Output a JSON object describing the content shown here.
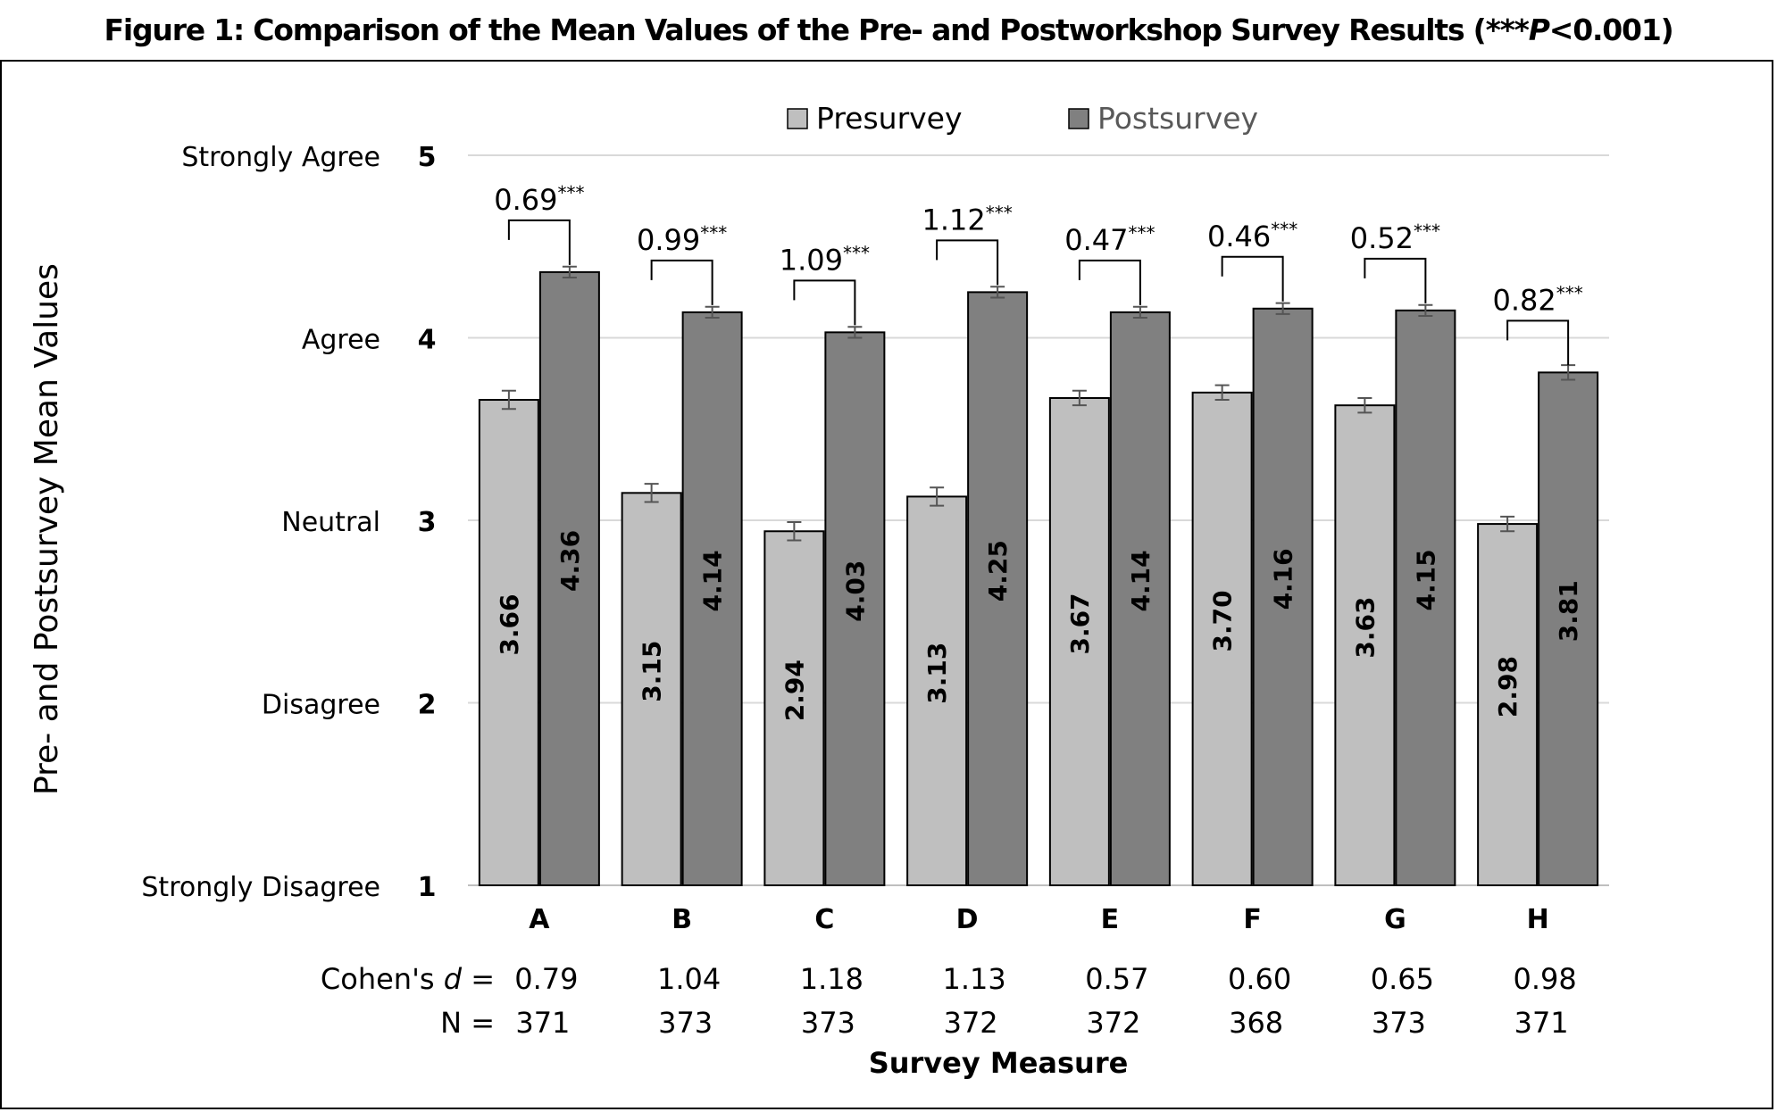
{
  "title": {
    "prefix": "Figure 1: Comparison of the Mean Values of the Pre- and Postworkshop Survey Results (***",
    "p_symbol": "P",
    "suffix": "<0.001)"
  },
  "chart_data": {
    "type": "bar",
    "categories": [
      "A",
      "B",
      "C",
      "D",
      "E",
      "F",
      "G",
      "H"
    ],
    "series": [
      {
        "name": "Presurvey",
        "values": [
          3.66,
          3.15,
          2.94,
          3.13,
          3.67,
          3.7,
          3.63,
          2.98
        ],
        "labels": [
          "3.66",
          "3.15",
          "2.94",
          "3.13",
          "3.67",
          "3.70",
          "3.63",
          "2.98"
        ],
        "color": "#bfbfbf"
      },
      {
        "name": "Postsurvey",
        "values": [
          4.36,
          4.14,
          4.03,
          4.25,
          4.14,
          4.16,
          4.15,
          3.81
        ],
        "labels": [
          "4.36",
          "4.14",
          "4.03",
          "4.25",
          "4.14",
          "4.16",
          "4.15",
          "3.81"
        ],
        "color": "#808080"
      }
    ],
    "error": [
      [
        0.05,
        0.05,
        0.05,
        0.05,
        0.04,
        0.04,
        0.04,
        0.04
      ],
      [
        0.03,
        0.03,
        0.03,
        0.03,
        0.03,
        0.03,
        0.03,
        0.04
      ]
    ],
    "differences": [
      "0.69",
      "0.99",
      "1.09",
      "1.12",
      "0.47",
      "0.46",
      "0.52",
      "0.82"
    ],
    "significance": "***",
    "ylim": [
      1,
      5
    ],
    "yticks": [
      1,
      2,
      3,
      4,
      5
    ],
    "ytick_text": [
      "1",
      "2",
      "3",
      "4",
      "5"
    ],
    "ytick_labels": [
      "Strongly Disagree",
      "Disagree",
      "Neutral",
      "Agree",
      "Strongly Agree"
    ],
    "ylabel": "Pre- and Postsurvey Mean Values",
    "xlabel": "Survey Measure",
    "legend_position": "top",
    "grid": true,
    "cohens_d_label": "Cohen's d =",
    "cohens_d_label_parts": [
      "Cohen's ",
      "d",
      " ="
    ],
    "cohens_d": [
      "0.79",
      "1.04",
      "1.18",
      "1.13",
      "0.57",
      "0.60",
      "0.65",
      "0.98"
    ],
    "n_label": "N =",
    "n": [
      "371",
      "373",
      "373",
      "372",
      "372",
      "368",
      "373",
      "371"
    ]
  }
}
